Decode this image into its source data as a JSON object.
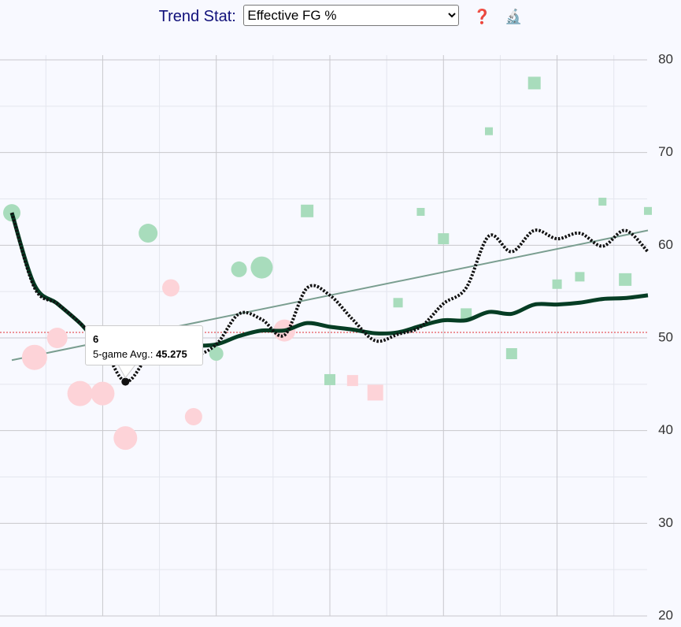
{
  "header": {
    "label": "Trend Stat:",
    "selected": "Effective FG %",
    "help_icon": "❓",
    "analyze_icon": "🔬"
  },
  "chart_data": {
    "type": "scatter",
    "x": [
      1,
      2,
      3,
      4,
      5,
      6,
      7,
      8,
      9,
      10,
      11,
      12,
      13,
      14,
      15,
      16,
      17,
      18,
      19,
      20,
      21,
      22,
      23,
      24,
      25,
      26,
      27,
      28,
      29
    ],
    "values": [
      63.5,
      47.9,
      50.0,
      44.0,
      44.0,
      39.2,
      61.3,
      55.4,
      41.5,
      48.3,
      57.4,
      57.6,
      50.8,
      63.7,
      45.5,
      45.4,
      44.1,
      53.8,
      63.6,
      60.7,
      52.6,
      72.3,
      48.3,
      77.5,
      55.8,
      56.6,
      64.7,
      56.3,
      63.7
    ],
    "sizes": [
      11,
      16,
      13,
      16,
      15,
      15,
      12,
      11,
      11,
      9,
      10,
      14,
      14,
      8,
      7,
      7,
      10,
      6,
      5,
      7,
      7,
      5,
      7,
      8,
      6,
      6,
      5,
      8,
      5
    ],
    "markers": [
      "circle",
      "circle",
      "circle",
      "circle",
      "circle",
      "circle",
      "circle",
      "circle",
      "circle",
      "circle",
      "circle",
      "circle",
      "circle",
      "square",
      "square",
      "square",
      "square",
      "square",
      "square",
      "square",
      "square",
      "square",
      "square",
      "square",
      "square",
      "square",
      "square",
      "square",
      "square"
    ],
    "colors": [
      "#a8dcbc",
      "#fdd3d8",
      "#fdd3d8",
      "#fdd3d8",
      "#fdd3d8",
      "#fdd3d8",
      "#a8dcbc",
      "#fdd3d8",
      "#fdd3d8",
      "#a8dcbc",
      "#a8dcbc",
      "#a8dcbc",
      "#fdd3d8",
      "#a8dcbc",
      "#a8dcbc",
      "#fdd3d8",
      "#fdd3d8",
      "#a8dcbc",
      "#a8dcbc",
      "#a8dcbc",
      "#a8dcbc",
      "#a8dcbc",
      "#a8dcbc",
      "#a8dcbc",
      "#a8dcbc",
      "#a8dcbc",
      "#a8dcbc",
      "#a8dcbc",
      "#a8dcbc"
    ],
    "season_avg": [
      63.5,
      55.7,
      53.7,
      51.6,
      49.2,
      49.8,
      49.7,
      49.5,
      49.2,
      49.3,
      50.2,
      50.8,
      50.8,
      51.6,
      51.2,
      50.9,
      50.5,
      50.6,
      51.3,
      51.9,
      51.9,
      52.8,
      52.6,
      53.6,
      53.6,
      53.8,
      54.2,
      54.3,
      54.6
    ],
    "season_avg_color": "#063d24",
    "rolling_avg": [
      63.5,
      55.4,
      53.7,
      51.6,
      49.1,
      45.275,
      48.0,
      49.5,
      48.2,
      49.3,
      52.6,
      52.0,
      50.3,
      55.4,
      54.6,
      52.0,
      49.7,
      50.4,
      51.2,
      53.7,
      55.4,
      61.0,
      59.3,
      61.6,
      60.7,
      61.3,
      59.9,
      61.6,
      59.3
    ],
    "rolling_avg_color": "#111111",
    "trend": [
      47.6,
      61.6
    ],
    "trend_color": "#7a9e90",
    "reference_line": 50.6,
    "reference_color": "#e03030",
    "xlim": [
      1,
      29
    ],
    "xticks": [
      2.5,
      5,
      7.5,
      10,
      12.5,
      15,
      17.5,
      20,
      22.5,
      25,
      27.5
    ],
    "ylim": [
      20,
      80
    ],
    "yticks": [
      20,
      30,
      40,
      50,
      60,
      70,
      80
    ],
    "yminor": [
      25,
      35,
      45,
      55,
      65,
      75
    ],
    "tooltip": {
      "title": "6",
      "label": "5-game Avg.:",
      "value": "45.275"
    }
  }
}
